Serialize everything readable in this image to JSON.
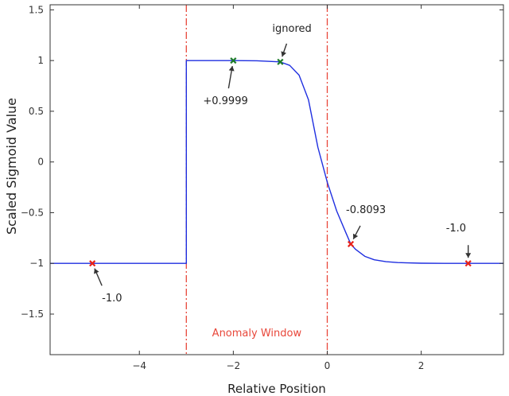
{
  "chart_data": {
    "type": "line",
    "xlabel": "Relative Position",
    "ylabel": "Scaled Sigmoid Value",
    "xlim": [
      -5.9,
      3.75
    ],
    "ylim": [
      -1.9,
      1.55
    ],
    "xticks": [
      -4,
      -2,
      0,
      2
    ],
    "yticks": [
      -1.5,
      -1,
      -0.5,
      0,
      0.5,
      1,
      1.5
    ],
    "xtick_labels": [
      "−4",
      "−2",
      "0",
      "2"
    ],
    "ytick_labels": [
      "−1.5",
      "−1",
      "−0.5",
      "0",
      "0.5",
      "1",
      "1.5"
    ],
    "grid": false,
    "series": [
      {
        "x": [
          -5.9,
          -3.0,
          -3.0,
          -2.5,
          -2.0,
          -1.5,
          -1.0,
          -0.8,
          -0.6,
          -0.4,
          -0.2,
          0.0,
          0.2,
          0.4,
          0.5,
          0.6,
          0.8,
          1.0,
          1.25,
          1.5,
          2.0,
          2.5,
          3.0,
          3.75
        ],
        "y": [
          -1.0,
          -1.0,
          0.9999,
          0.9999,
          0.9999,
          0.998,
          0.9866,
          0.9526,
          0.8562,
          0.6134,
          0.1455,
          -0.2,
          -0.4825,
          -0.7017,
          -0.8093,
          -0.8608,
          -0.9305,
          -0.9645,
          -0.9828,
          -0.9918,
          -0.9982,
          -0.9996,
          -0.9999,
          -1.0
        ],
        "color": "#1f2fe0"
      }
    ],
    "window_bounds": [
      -3,
      0
    ],
    "window_label": "Anomaly Window",
    "window_color": "#e8473a",
    "markers": [
      {
        "x": -5.0,
        "y": -1.0,
        "color": "#e8231a"
      },
      {
        "x": -2.0,
        "y": 0.9999,
        "color": "#1e7d2a"
      },
      {
        "x": -1.0,
        "y": 0.9866,
        "color": "#1e7d2a"
      },
      {
        "x": 0.5,
        "y": -0.8093,
        "color": "#e8231a"
      },
      {
        "x": 3.0,
        "y": -1.0,
        "color": "#e8231a"
      }
    ],
    "annotations": [
      {
        "text": "-1.0",
        "x": -5.0,
        "y": -1.0
      },
      {
        "text": "+0.9999",
        "x": -2.0,
        "y": 0.9999
      },
      {
        "text": "ignored",
        "x": -1.0,
        "y": 0.9866
      },
      {
        "text": "-0.8093",
        "x": 0.5,
        "y": -0.8093
      },
      {
        "text": "-1.0",
        "x": 3.0,
        "y": -1.0
      }
    ]
  }
}
